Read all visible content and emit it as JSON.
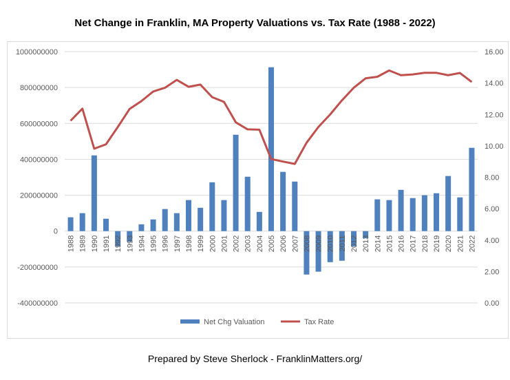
{
  "footer": "Prepared by Steve Sherlock - FranklinMatters.org/",
  "chart_data": {
    "type": "bar+line",
    "title": "Net Change in Franklin, MA Property Valuations vs. Tax Rate (1988 - 2022)",
    "categories": [
      "1988",
      "1989",
      "1990",
      "1991",
      "1992",
      "1993",
      "1994",
      "1995",
      "1996",
      "1997",
      "1998",
      "1999",
      "2000",
      "2001",
      "2002",
      "2003",
      "2004",
      "2005",
      "2006",
      "2007",
      "2008",
      "2009",
      "2010",
      "2011",
      "2012",
      "2013",
      "2014",
      "2015",
      "2016",
      "2017",
      "2018",
      "2019",
      "2020",
      "2021",
      "2022"
    ],
    "series": [
      {
        "name": "Net Chg Valuation",
        "type": "bar",
        "axis": "left",
        "color": "#4e81bd",
        "values": [
          77000000,
          100000000,
          422000000,
          69000000,
          -85000000,
          -60000000,
          38000000,
          65000000,
          123000000,
          100000000,
          173000000,
          130000000,
          272000000,
          173000000,
          537000000,
          303000000,
          107000000,
          913000000,
          330000000,
          276000000,
          -242000000,
          -226000000,
          -173000000,
          -165000000,
          -85000000,
          -40000000,
          177000000,
          173000000,
          230000000,
          184000000,
          200000000,
          211000000,
          307000000,
          188000000,
          464000000
        ]
      },
      {
        "name": "Tax Rate",
        "type": "line",
        "axis": "right",
        "color": "#c0504d",
        "values": [
          11.6,
          12.37,
          9.82,
          10.1,
          11.2,
          12.35,
          12.85,
          13.46,
          13.7,
          14.2,
          13.76,
          13.9,
          13.1,
          12.8,
          11.5,
          11.05,
          11.03,
          9.16,
          9.0,
          8.85,
          10.2,
          11.2,
          12.0,
          12.9,
          13.7,
          14.3,
          14.4,
          14.8,
          14.5,
          14.55,
          14.65,
          14.65,
          14.5,
          14.64,
          14.07
        ]
      }
    ],
    "left_axis": {
      "min": -400000000,
      "max": 1000000000,
      "ticks": [
        "-400000000",
        "-200000000",
        "0",
        "200000000",
        "400000000",
        "600000000",
        "800000000",
        "1000000000"
      ]
    },
    "right_axis": {
      "min": 0,
      "max": 16,
      "ticks": [
        "0.00",
        "2.00",
        "4.00",
        "6.00",
        "8.00",
        "10.00",
        "12.00",
        "14.00",
        "16.00"
      ]
    },
    "grid": true,
    "legend": "bottom"
  }
}
